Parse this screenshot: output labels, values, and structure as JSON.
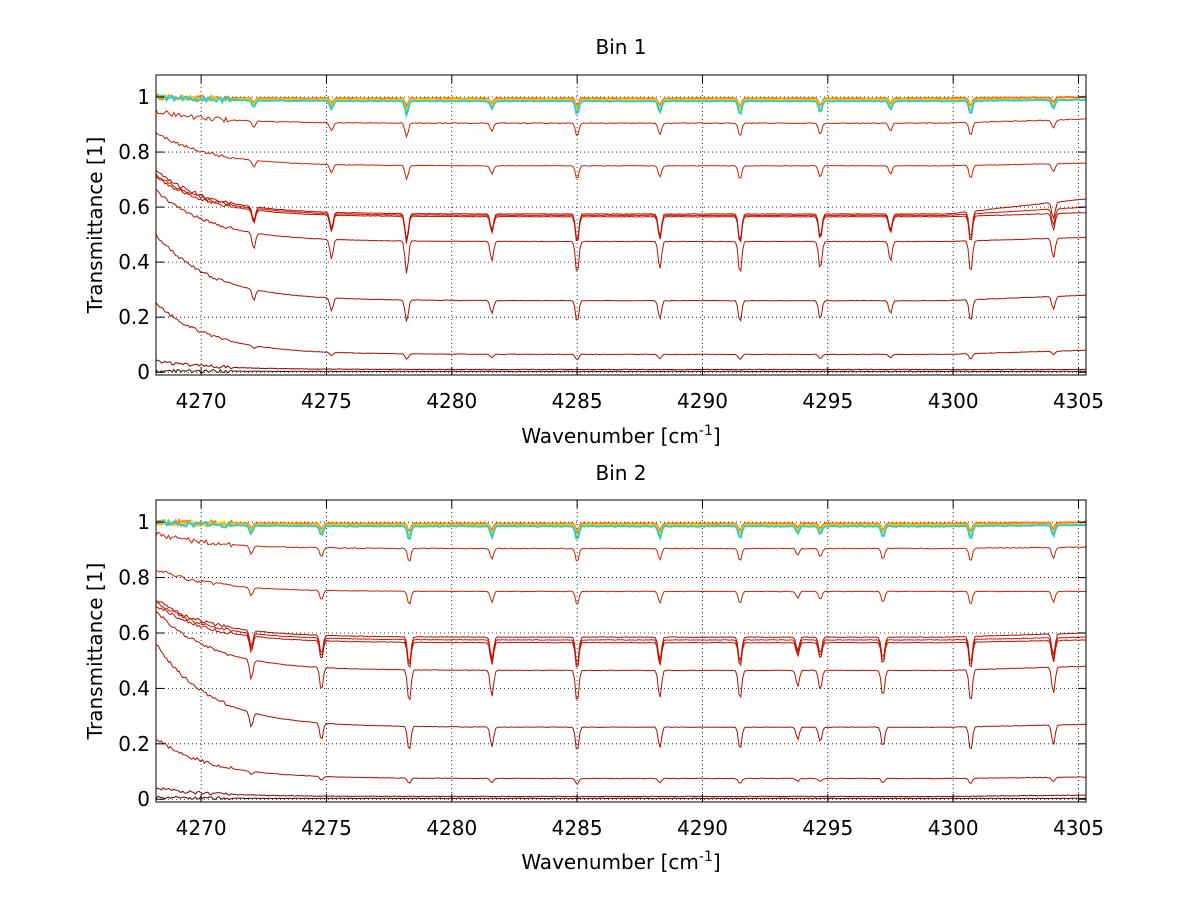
{
  "chart_data": [
    {
      "type": "line",
      "title": "Bin 1",
      "xlabel": "Wavenumber [cm",
      "xlabel_sup": "-1",
      "xlabel_suffix": "]",
      "ylabel": "Transmittance [1]",
      "xlim": [
        4268.2,
        4305.3
      ],
      "ylim": [
        -0.01,
        1.08
      ],
      "xticks": [
        4270,
        4275,
        4280,
        4285,
        4290,
        4295,
        4300,
        4305
      ],
      "yticks": [
        0,
        0.2,
        0.4,
        0.6,
        0.8,
        1
      ],
      "ytick_labels": [
        "0",
        "0.2",
        "0.4",
        "0.6",
        "0.8",
        "1"
      ],
      "grid": true,
      "absorption_lines": [
        {
          "x": 4272.1,
          "depth": 0.5
        },
        {
          "x": 4275.2,
          "depth": 0.6
        },
        {
          "x": 4278.2,
          "depth": 1.0
        },
        {
          "x": 4281.6,
          "depth": 0.6
        },
        {
          "x": 4285.0,
          "depth": 1.0
        },
        {
          "x": 4288.3,
          "depth": 0.85
        },
        {
          "x": 4291.5,
          "depth": 1.0
        },
        {
          "x": 4294.7,
          "depth": 0.85
        },
        {
          "x": 4297.5,
          "depth": 0.6
        },
        {
          "x": 4300.7,
          "depth": 1.0
        },
        {
          "x": 4304.0,
          "depth": 0.6
        }
      ],
      "series": [
        {
          "start": 1.0,
          "baseline": 0.995,
          "end": 1.0,
          "line_depth": 0.03,
          "color": "#ff7a00"
        },
        {
          "start": 1.0,
          "baseline": 0.99,
          "end": 0.99,
          "line_depth": 0.04,
          "color": "#ffcc00"
        },
        {
          "start": 1.0,
          "baseline": 0.985,
          "end": 0.99,
          "line_depth": 0.05,
          "color": "#33cccc"
        },
        {
          "start": 0.95,
          "baseline": 0.905,
          "end": 0.92,
          "line_depth": 0.05,
          "color": "#cc2200"
        },
        {
          "start": 0.87,
          "baseline": 0.75,
          "end": 0.76,
          "line_depth": 0.05,
          "color": "#cc2200"
        },
        {
          "start": 0.73,
          "baseline": 0.575,
          "end": 0.63,
          "line_depth": 0.1,
          "color": "#aa1100"
        },
        {
          "start": 0.72,
          "baseline": 0.57,
          "end": 0.6,
          "line_depth": 0.1,
          "color": "#dd1100"
        },
        {
          "start": 0.71,
          "baseline": 0.565,
          "end": 0.58,
          "line_depth": 0.1,
          "color": "#bb1100"
        },
        {
          "start": 0.66,
          "baseline": 0.475,
          "end": 0.49,
          "line_depth": 0.12,
          "color": "#bb1100"
        },
        {
          "start": 0.5,
          "baseline": 0.26,
          "end": 0.28,
          "line_depth": 0.08,
          "color": "#aa1100"
        },
        {
          "start": 0.25,
          "baseline": 0.065,
          "end": 0.08,
          "line_depth": 0.02,
          "color": "#aa1100"
        },
        {
          "start": 0.04,
          "baseline": 0.01,
          "end": 0.01,
          "line_depth": 0.0,
          "color": "#880000"
        },
        {
          "start": 0.005,
          "baseline": 0.003,
          "end": 0.003,
          "line_depth": 0.0,
          "color": "#550000"
        }
      ]
    },
    {
      "type": "line",
      "title": "Bin 2",
      "xlabel": "Wavenumber [cm",
      "xlabel_sup": "-1",
      "xlabel_suffix": "]",
      "ylabel": "Transmittance [1]",
      "xlim": [
        4268.2,
        4305.3
      ],
      "ylim": [
        -0.01,
        1.08
      ],
      "xticks": [
        4270,
        4275,
        4280,
        4285,
        4290,
        4295,
        4300,
        4305
      ],
      "yticks": [
        0,
        0.2,
        0.4,
        0.6,
        0.8,
        1
      ],
      "ytick_labels": [
        "0",
        "0.2",
        "0.4",
        "0.6",
        "0.8",
        "1"
      ],
      "grid": true,
      "absorption_lines": [
        {
          "x": 4272.0,
          "depth": 0.6
        },
        {
          "x": 4274.8,
          "depth": 0.7
        },
        {
          "x": 4278.3,
          "depth": 1.0
        },
        {
          "x": 4281.6,
          "depth": 0.8
        },
        {
          "x": 4285.0,
          "depth": 1.0
        },
        {
          "x": 4288.3,
          "depth": 0.85
        },
        {
          "x": 4291.5,
          "depth": 0.9
        },
        {
          "x": 4293.8,
          "depth": 0.5
        },
        {
          "x": 4294.7,
          "depth": 0.6
        },
        {
          "x": 4297.2,
          "depth": 0.8
        },
        {
          "x": 4300.7,
          "depth": 1.0
        },
        {
          "x": 4304.0,
          "depth": 0.8
        }
      ],
      "series": [
        {
          "start": 1.0,
          "baseline": 0.995,
          "end": 1.0,
          "line_depth": 0.03,
          "color": "#ff7a00"
        },
        {
          "start": 1.0,
          "baseline": 0.99,
          "end": 0.99,
          "line_depth": 0.04,
          "color": "#ffcc00"
        },
        {
          "start": 1.0,
          "baseline": 0.985,
          "end": 0.99,
          "line_depth": 0.05,
          "color": "#33cccc"
        },
        {
          "start": 0.96,
          "baseline": 0.905,
          "end": 0.91,
          "line_depth": 0.05,
          "color": "#cc2200"
        },
        {
          "start": 0.83,
          "baseline": 0.75,
          "end": 0.75,
          "line_depth": 0.05,
          "color": "#cc2200"
        },
        {
          "start": 0.72,
          "baseline": 0.585,
          "end": 0.6,
          "line_depth": 0.1,
          "color": "#aa1100"
        },
        {
          "start": 0.71,
          "baseline": 0.575,
          "end": 0.585,
          "line_depth": 0.1,
          "color": "#dd1100"
        },
        {
          "start": 0.7,
          "baseline": 0.565,
          "end": 0.575,
          "line_depth": 0.1,
          "color": "#bb1100"
        },
        {
          "start": 0.68,
          "baseline": 0.465,
          "end": 0.48,
          "line_depth": 0.12,
          "color": "#bb1100"
        },
        {
          "start": 0.56,
          "baseline": 0.26,
          "end": 0.27,
          "line_depth": 0.09,
          "color": "#aa1100"
        },
        {
          "start": 0.22,
          "baseline": 0.075,
          "end": 0.08,
          "line_depth": 0.02,
          "color": "#aa1100"
        },
        {
          "start": 0.04,
          "baseline": 0.01,
          "end": 0.015,
          "line_depth": 0.0,
          "color": "#880000"
        },
        {
          "start": 0.005,
          "baseline": 0.003,
          "end": 0.003,
          "line_depth": 0.0,
          "color": "#550000"
        }
      ]
    }
  ]
}
